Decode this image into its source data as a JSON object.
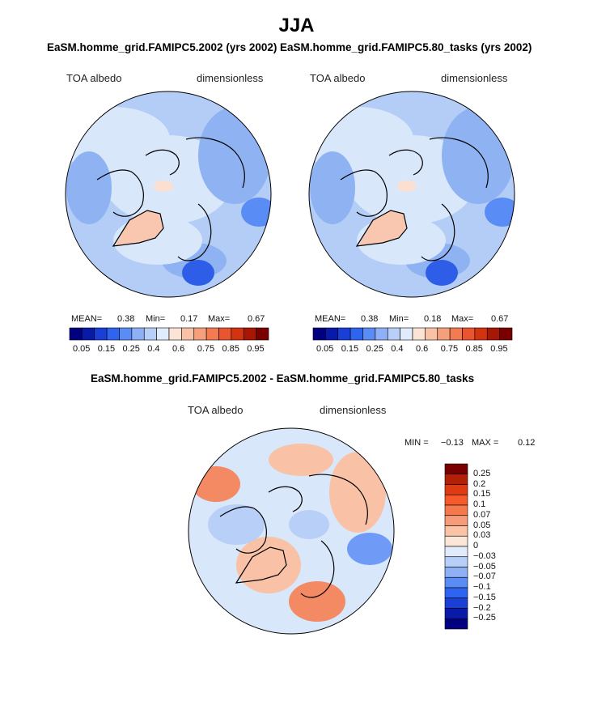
{
  "page": {
    "title": "JJA"
  },
  "panels": [
    {
      "title": "EaSM.homme_grid.FAMIPC5.2002 (yrs 2002)",
      "variable": "TOA albedo",
      "units": "dimensionless",
      "stats": {
        "mean_label": "MEAN=",
        "mean": "0.38",
        "min_label": "Min=",
        "min": "0.17",
        "max_label": "Max=",
        "max": "0.67"
      }
    },
    {
      "title": "EaSM.homme_grid.FAMIPC5.80_tasks (yrs 2002)",
      "variable": "TOA albedo",
      "units": "dimensionless",
      "stats": {
        "mean_label": "MEAN=",
        "mean": "0.38",
        "min_label": "Min=",
        "min": "0.18",
        "max_label": "Max=",
        "max": "0.67"
      }
    },
    {
      "title": "EaSM.homme_grid.FAMIPC5.2002 - EaSM.homme_grid.FAMIPC5.80_tasks",
      "variable": "TOA albedo",
      "units": "dimensionless",
      "stats": {
        "min_label": "MIN =",
        "min": "−0.13",
        "max_label": "MAX =",
        "max": "0.12"
      }
    }
  ],
  "colorbar_top": {
    "colors": [
      "#000080",
      "#0a1aa8",
      "#1a3fd6",
      "#2e64f0",
      "#5a8cf5",
      "#8db0f7",
      "#b8cff7",
      "#e0ecfb",
      "#fbe3d6",
      "#f9c2a6",
      "#f5a07a",
      "#f27b52",
      "#ea5430",
      "#d23412",
      "#a81606",
      "#7a0000"
    ],
    "labels": [
      "0.05",
      "0.15",
      "0.25",
      "0.4",
      "0.6",
      "0.75",
      "0.85",
      "0.95"
    ]
  },
  "colorbar_diff": {
    "colors": [
      "#7a0000",
      "#b32008",
      "#e03a12",
      "#f65a2a",
      "#f47a4e",
      "#f79c78",
      "#fac3a6",
      "#fce6d8",
      "#e0ecfb",
      "#b8cff7",
      "#8db0f7",
      "#5a8cf5",
      "#2e64f0",
      "#1a3fd6",
      "#0a1aa8",
      "#000080"
    ],
    "labels": [
      "0.25",
      "0.2",
      "0.15",
      "0.1",
      "0.07",
      "0.05",
      "0.03",
      "0",
      "−0.03",
      "−0.05",
      "−0.07",
      "−0.1",
      "−0.15",
      "−0.2",
      "−0.25"
    ]
  },
  "map_colors": {
    "base": "#b4cdf6",
    "light": "#d9e7fb",
    "mid": "#8fb2f3",
    "dark": "#5a8cf5",
    "deep": "#2e5ee8",
    "warm": "#f9c6b0",
    "warm2": "#fbe0d2",
    "diff_base": "#d9e7fb",
    "diff_warm": "#f9c2a6",
    "diff_warm2": "#f38a64",
    "diff_cool": "#b8cff7",
    "diff_cool2": "#6f9af5",
    "coast": "#000000"
  }
}
